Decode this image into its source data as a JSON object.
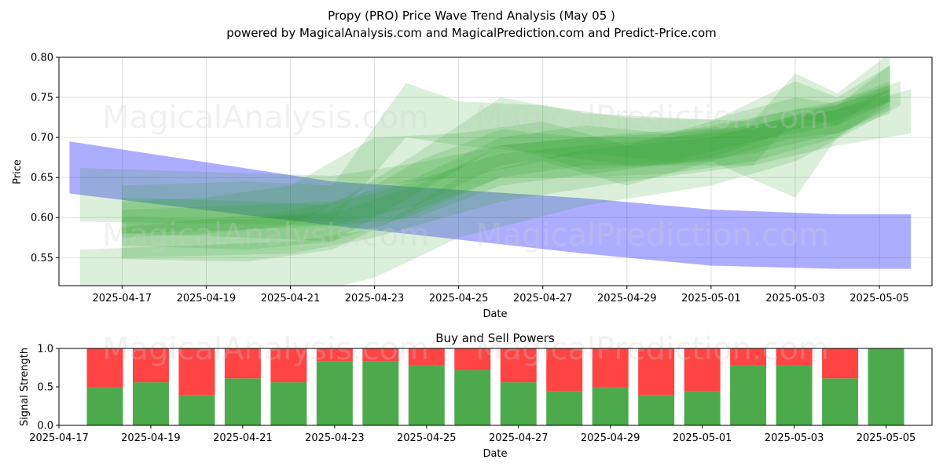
{
  "figure": {
    "title_line1": "Propy (PRO) Price Wave Trend Analysis (May 05 )",
    "title_line2": "powered by MagicalAnalysis.com and MagicalPrediction.com and Predict-Price.com",
    "watermarks": [
      "MagicalAnalysis.com",
      "MagicalPrediction.com"
    ]
  },
  "chart_data": [
    {
      "type": "area",
      "title": "",
      "xlabel": "Date",
      "ylabel": "Price",
      "ylim": [
        0.515,
        0.8
      ],
      "yticks": [
        0.55,
        0.6,
        0.65,
        0.7,
        0.75,
        0.8
      ],
      "ytick_labels": [
        "0.55",
        "0.60",
        "0.65",
        "0.70",
        "0.75",
        "0.80"
      ],
      "xlim": [
        "2025-04-15T12:00",
        "2025-05-06T06:00"
      ],
      "xticks": [
        "2025-04-17",
        "2025-04-19",
        "2025-04-21",
        "2025-04-23",
        "2025-04-25",
        "2025-04-27",
        "2025-04-29",
        "2025-05-01",
        "2025-05-03",
        "2025-05-05"
      ],
      "grid": true,
      "colors": {
        "green": "#2ca02c",
        "blue": "#0000ff"
      },
      "blue_band": {
        "x": [
          "2025-04-15T18:00",
          "2025-04-22",
          "2025-04-28",
          "2025-05-01",
          "2025-05-04",
          "2025-05-05T18:00"
        ],
        "upper": [
          0.695,
          0.645,
          0.624,
          0.61,
          0.604,
          0.604
        ],
        "lower": [
          0.63,
          0.59,
          0.555,
          0.54,
          0.536,
          0.536
        ]
      },
      "green_bands": [
        {
          "x": [
            "2025-04-16",
            "2025-04-22",
            "2025-04-24",
            "2025-04-26",
            "2025-04-29",
            "2025-05-01",
            "2025-05-03",
            "2025-05-04",
            "2025-05-05T06:00"
          ],
          "upper": [
            0.662,
            0.652,
            0.668,
            0.69,
            0.705,
            0.712,
            0.735,
            0.74,
            0.765
          ],
          "lower": [
            0.595,
            0.59,
            0.6,
            0.64,
            0.66,
            0.675,
            0.71,
            0.722,
            0.745
          ]
        },
        {
          "x": [
            "2025-04-16",
            "2025-04-21",
            "2025-04-23",
            "2025-04-25",
            "2025-04-28",
            "2025-05-01",
            "2025-05-03",
            "2025-05-05T12:00"
          ],
          "upper": [
            0.56,
            0.57,
            0.585,
            0.65,
            0.685,
            0.7,
            0.728,
            0.77
          ],
          "lower": [
            0.5,
            0.5,
            0.525,
            0.575,
            0.615,
            0.64,
            0.67,
            0.74
          ]
        },
        {
          "x": [
            "2025-04-17",
            "2025-04-21",
            "2025-04-23",
            "2025-04-26",
            "2025-04-29",
            "2025-05-02",
            "2025-05-04",
            "2025-05-05T18:00"
          ],
          "upper": [
            0.588,
            0.608,
            0.63,
            0.68,
            0.695,
            0.71,
            0.735,
            0.76
          ],
          "lower": [
            0.55,
            0.555,
            0.575,
            0.62,
            0.645,
            0.665,
            0.69,
            0.705
          ]
        },
        {
          "x": [
            "2025-04-17",
            "2025-04-20",
            "2025-04-22",
            "2025-04-23T18:00",
            "2025-04-25",
            "2025-04-27",
            "2025-04-29",
            "2025-05-01",
            "2025-05-03",
            "2025-05-04",
            "2025-05-05T06:00"
          ],
          "upper": [
            0.64,
            0.645,
            0.64,
            0.768,
            0.745,
            0.74,
            0.725,
            0.722,
            0.75,
            0.742,
            0.76
          ],
          "lower": [
            0.6,
            0.6,
            0.595,
            0.7,
            0.69,
            0.68,
            0.665,
            0.67,
            0.7,
            0.705,
            0.73
          ]
        },
        {
          "x": [
            "2025-04-17",
            "2025-04-20",
            "2025-04-22",
            "2025-04-24",
            "2025-04-26",
            "2025-04-28",
            "2025-04-30",
            "2025-05-02",
            "2025-05-03",
            "2025-05-04",
            "2025-05-05T06:00"
          ],
          "upper": [
            0.625,
            0.62,
            0.615,
            0.68,
            0.75,
            0.73,
            0.725,
            0.72,
            0.78,
            0.755,
            0.805
          ],
          "lower": [
            0.58,
            0.575,
            0.57,
            0.63,
            0.69,
            0.66,
            0.665,
            0.665,
            0.725,
            0.715,
            0.76
          ]
        },
        {
          "x": [
            "2025-04-17",
            "2025-04-20",
            "2025-04-22",
            "2025-04-24",
            "2025-04-26",
            "2025-04-28",
            "2025-04-30",
            "2025-05-02",
            "2025-05-04",
            "2025-05-05T06:00"
          ],
          "upper": [
            0.6,
            0.598,
            0.61,
            0.67,
            0.71,
            0.7,
            0.705,
            0.715,
            0.74,
            0.79
          ],
          "lower": [
            0.548,
            0.545,
            0.56,
            0.61,
            0.65,
            0.65,
            0.655,
            0.67,
            0.7,
            0.74
          ]
        },
        {
          "x": [
            "2025-04-17",
            "2025-04-19",
            "2025-04-21",
            "2025-04-23",
            "2025-04-25",
            "2025-04-27",
            "2025-04-29",
            "2025-05-01",
            "2025-05-03",
            "2025-05-04",
            "2025-05-05T06:00"
          ],
          "upper": [
            0.62,
            0.625,
            0.64,
            0.7,
            0.705,
            0.72,
            0.69,
            0.72,
            0.77,
            0.75,
            0.79
          ],
          "lower": [
            0.575,
            0.58,
            0.59,
            0.64,
            0.65,
            0.67,
            0.64,
            0.67,
            0.625,
            0.7,
            0.745
          ]
        },
        {
          "x": [
            "2025-04-17",
            "2025-04-20",
            "2025-04-22",
            "2025-04-24",
            "2025-04-26",
            "2025-04-28",
            "2025-04-30",
            "2025-05-02",
            "2025-05-04",
            "2025-05-05T06:00"
          ],
          "upper": [
            0.61,
            0.615,
            0.62,
            0.65,
            0.7,
            0.715,
            0.705,
            0.725,
            0.745,
            0.77
          ],
          "lower": [
            0.58,
            0.585,
            0.59,
            0.615,
            0.665,
            0.68,
            0.67,
            0.695,
            0.715,
            0.745
          ]
        },
        {
          "x": [
            "2025-04-17",
            "2025-04-20",
            "2025-04-22",
            "2025-04-24",
            "2025-04-26",
            "2025-04-28",
            "2025-04-30",
            "2025-05-02",
            "2025-05-04",
            "2025-05-05T06:00"
          ],
          "upper": [
            0.6,
            0.6,
            0.605,
            0.64,
            0.69,
            0.7,
            0.7,
            0.715,
            0.735,
            0.76
          ],
          "lower": [
            0.565,
            0.56,
            0.57,
            0.605,
            0.65,
            0.665,
            0.665,
            0.68,
            0.705,
            0.735
          ]
        }
      ]
    },
    {
      "type": "bar",
      "title": "Buy and Sell Powers",
      "xlabel": "Date",
      "ylabel": "Signal Strength",
      "ylim": [
        0,
        1.0
      ],
      "yticks": [
        0.0,
        0.5,
        1.0
      ],
      "ytick_labels": [
        "0.0",
        "0.5",
        "1.0"
      ],
      "xlim": [
        "2025-04-17",
        "2025-05-06"
      ],
      "xticks": [
        "2025-04-17",
        "2025-04-19",
        "2025-04-21",
        "2025-04-23",
        "2025-04-25",
        "2025-04-27",
        "2025-04-29",
        "2025-05-01",
        "2025-05-03",
        "2025-05-05"
      ],
      "categories": [
        "2025-04-18",
        "2025-04-19",
        "2025-04-20",
        "2025-04-21",
        "2025-04-22",
        "2025-04-23",
        "2025-04-24",
        "2025-04-25",
        "2025-04-26",
        "2025-04-27",
        "2025-04-28",
        "2025-04-29",
        "2025-04-30",
        "2025-05-01",
        "2025-05-02",
        "2025-05-03",
        "2025-05-04",
        "2025-05-05"
      ],
      "series": [
        {
          "values": [
            0.5,
            0.56,
            0.39,
            0.61,
            0.56,
            0.83,
            0.83,
            0.78,
            0.72,
            0.56,
            0.44,
            0.5,
            0.39,
            0.44,
            0.78,
            0.78,
            0.61,
            1.0
          ],
          "color": "#4caa4c"
        },
        {
          "values": [
            0.5,
            0.44,
            0.61,
            0.39,
            0.44,
            0.17,
            0.17,
            0.22,
            0.28,
            0.44,
            0.56,
            0.5,
            0.61,
            0.56,
            0.22,
            0.22,
            0.39,
            0.0
          ],
          "color": "#ff4444"
        }
      ],
      "grid": false
    }
  ]
}
